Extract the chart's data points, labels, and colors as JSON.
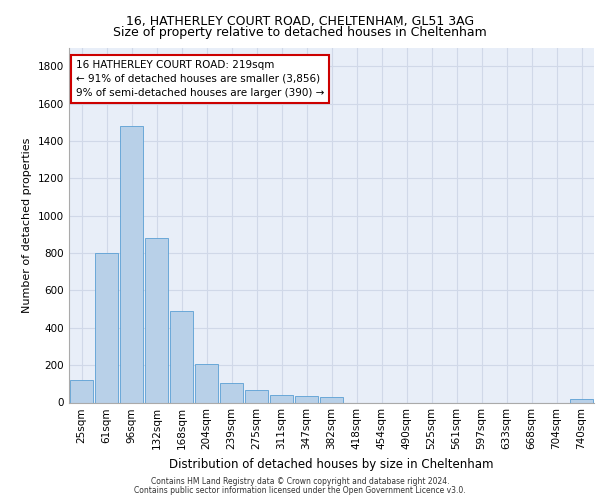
{
  "title1": "16, HATHERLEY COURT ROAD, CHELTENHAM, GL51 3AG",
  "title2": "Size of property relative to detached houses in Cheltenham",
  "xlabel": "Distribution of detached houses by size in Cheltenham",
  "ylabel": "Number of detached properties",
  "footer1": "Contains HM Land Registry data © Crown copyright and database right 2024.",
  "footer2": "Contains public sector information licensed under the Open Government Licence v3.0.",
  "bar_labels": [
    "25sqm",
    "61sqm",
    "96sqm",
    "132sqm",
    "168sqm",
    "204sqm",
    "239sqm",
    "275sqm",
    "311sqm",
    "347sqm",
    "382sqm",
    "418sqm",
    "454sqm",
    "490sqm",
    "525sqm",
    "561sqm",
    "597sqm",
    "633sqm",
    "668sqm",
    "704sqm",
    "740sqm"
  ],
  "bar_values": [
    120,
    800,
    1480,
    880,
    490,
    205,
    105,
    65,
    40,
    35,
    28,
    0,
    0,
    0,
    0,
    0,
    0,
    0,
    0,
    0,
    18
  ],
  "bar_color": "#b8d0e8",
  "bar_edge_color": "#5a9fd4",
  "ylim": [
    0,
    1900
  ],
  "yticks": [
    0,
    200,
    400,
    600,
    800,
    1000,
    1200,
    1400,
    1600,
    1800
  ],
  "annotation_text": "16 HATHERLEY COURT ROAD: 219sqm\n← 91% of detached houses are smaller (3,856)\n9% of semi-detached houses are larger (390) →",
  "annotation_box_facecolor": "#ffffff",
  "annotation_box_edgecolor": "#cc0000",
  "grid_color": "#d0d8e8",
  "bg_color": "#e8eef8",
  "title1_fontsize": 9,
  "title2_fontsize": 9,
  "xlabel_fontsize": 8.5,
  "ylabel_fontsize": 8,
  "tick_fontsize": 7.5,
  "annotation_fontsize": 7.5,
  "footer_fontsize": 5.5
}
